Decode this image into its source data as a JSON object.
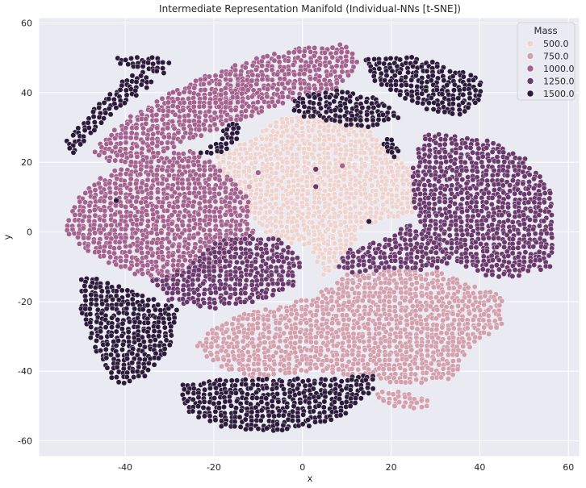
{
  "chart_data": {
    "type": "scatter",
    "title": "Intermediate Representation Manifold (Individual-NNs [t-SNE])",
    "xlabel": "x",
    "ylabel": "y",
    "xlim": [
      -59.5,
      62.5
    ],
    "ylim": [
      -64.5,
      61.5
    ],
    "xticks": [
      -40,
      -20,
      0,
      20,
      40,
      60
    ],
    "yticks": [
      60,
      40,
      20,
      0,
      -20,
      -40,
      -60
    ],
    "grid": true,
    "legend": {
      "title": "Mass",
      "position": "top-right",
      "entries": [
        {
          "label": "500.0",
          "mass": 500,
          "color": "#efd3cf"
        },
        {
          "label": "750.0",
          "mass": 750,
          "color": "#d3a0ae"
        },
        {
          "label": "1000.0",
          "mass": 1000,
          "color": "#a4628f"
        },
        {
          "label": "1250.0",
          "mass": 1250,
          "color": "#6b3a6d"
        },
        {
          "label": "1500.0",
          "mass": 1500,
          "color": "#2c1b3b"
        }
      ]
    },
    "clusters": [
      {
        "mass": 500,
        "polygon": [
          [
            -12,
            26
          ],
          [
            -5,
            33
          ],
          [
            5,
            34
          ],
          [
            13,
            31
          ],
          [
            20,
            24
          ],
          [
            27,
            14
          ],
          [
            26,
            6
          ],
          [
            14,
            2
          ],
          [
            8,
            -10
          ],
          [
            5,
            -13
          ],
          [
            2,
            -5
          ],
          [
            -8,
            -1
          ],
          [
            -13,
            7
          ],
          [
            -19,
            18
          ],
          [
            -20,
            23
          ]
        ]
      },
      {
        "mass": 750,
        "polygon": [
          [
            -22,
            -28
          ],
          [
            -12,
            -23
          ],
          [
            2,
            -19
          ],
          [
            10,
            -12
          ],
          [
            20,
            -11
          ],
          [
            30,
            -11
          ],
          [
            38,
            -15
          ],
          [
            46,
            -19
          ],
          [
            45,
            -27
          ],
          [
            38,
            -33
          ],
          [
            34,
            -42
          ],
          [
            24,
            -44
          ],
          [
            14,
            -42
          ],
          [
            2,
            -40
          ],
          [
            -4,
            -41
          ],
          [
            -12,
            -42
          ],
          [
            -20,
            -38
          ],
          [
            -24,
            -33
          ]
        ]
      },
      {
        "mass": 750,
        "polygon": [
          [
            17,
            -45
          ],
          [
            23,
            -46
          ],
          [
            29,
            -48
          ],
          [
            28,
            -51
          ],
          [
            20,
            -50
          ],
          [
            16,
            -47
          ]
        ]
      },
      {
        "mass": 1000,
        "polygon": [
          [
            -42,
            18
          ],
          [
            -36,
            21
          ],
          [
            -26,
            24
          ],
          [
            -18,
            18
          ],
          [
            -12,
            10
          ],
          [
            -11,
            0
          ],
          [
            -16,
            -8
          ],
          [
            -22,
            -12
          ],
          [
            -34,
            -14
          ],
          [
            -46,
            -8
          ],
          [
            -54,
            0
          ],
          [
            -52,
            8
          ],
          [
            -48,
            14
          ]
        ]
      },
      {
        "mass": 1000,
        "polygon": [
          [
            -48,
            23
          ],
          [
            -40,
            33
          ],
          [
            -30,
            40
          ],
          [
            -20,
            46
          ],
          [
            -10,
            50
          ],
          [
            0,
            53
          ],
          [
            10,
            54
          ],
          [
            13,
            48
          ],
          [
            8,
            41
          ],
          [
            -2,
            38
          ],
          [
            -12,
            33
          ],
          [
            -24,
            27
          ],
          [
            -34,
            21
          ],
          [
            -42,
            19
          ]
        ]
      },
      {
        "mass": 1000,
        "polygon": [
          [
            -22,
            37
          ],
          [
            -14,
            43
          ],
          [
            -8,
            46
          ],
          [
            -12,
            41
          ],
          [
            -18,
            35
          ]
        ]
      },
      {
        "mass": 1250,
        "polygon": [
          [
            28,
            29
          ],
          [
            40,
            27
          ],
          [
            50,
            22
          ],
          [
            56,
            12
          ],
          [
            57,
            -2
          ],
          [
            56,
            -10
          ],
          [
            46,
            -14
          ],
          [
            40,
            -12
          ],
          [
            32,
            -7
          ],
          [
            26,
            3
          ],
          [
            24,
            14
          ],
          [
            26,
            24
          ]
        ]
      },
      {
        "mass": 1250,
        "polygon": [
          [
            10,
            -5
          ],
          [
            18,
            -2
          ],
          [
            24,
            3
          ],
          [
            30,
            -2
          ],
          [
            34,
            -8
          ],
          [
            30,
            -11
          ],
          [
            20,
            -11
          ],
          [
            12,
            -12
          ],
          [
            8,
            -10
          ]
        ]
      },
      {
        "mass": 1250,
        "polygon": [
          [
            -26,
            -10
          ],
          [
            -20,
            -3
          ],
          [
            -12,
            -1
          ],
          [
            -5,
            -2
          ],
          [
            0,
            -8
          ],
          [
            -2,
            -16
          ],
          [
            -10,
            -20
          ],
          [
            -20,
            -22
          ],
          [
            -30,
            -20
          ],
          [
            -34,
            -14
          ]
        ]
      },
      {
        "mass": 1500,
        "polygon": [
          [
            -54,
            25
          ],
          [
            -48,
            34
          ],
          [
            -42,
            42
          ],
          [
            -36,
            47
          ],
          [
            -33,
            43
          ],
          [
            -40,
            37
          ],
          [
            -46,
            30
          ],
          [
            -52,
            22
          ]
        ]
      },
      {
        "mass": 1500,
        "polygon": [
          [
            -42,
            50
          ],
          [
            -36,
            51
          ],
          [
            -30,
            49
          ],
          [
            -31,
            45
          ],
          [
            -37,
            47
          ],
          [
            -42,
            48
          ]
        ]
      },
      {
        "mass": 1500,
        "polygon": [
          [
            14,
            50
          ],
          [
            20,
            51
          ],
          [
            26,
            50
          ],
          [
            32,
            48
          ],
          [
            40,
            44
          ],
          [
            41,
            38
          ],
          [
            36,
            33
          ],
          [
            28,
            35
          ],
          [
            22,
            39
          ],
          [
            16,
            43
          ]
        ]
      },
      {
        "mass": 1500,
        "polygon": [
          [
            -2,
            39
          ],
          [
            8,
            41
          ],
          [
            18,
            38
          ],
          [
            22,
            33
          ],
          [
            16,
            30
          ],
          [
            6,
            31
          ],
          [
            -2,
            34
          ]
        ]
      },
      {
        "mass": 1500,
        "polygon": [
          [
            -50,
            -12
          ],
          [
            -44,
            -14
          ],
          [
            -36,
            -18
          ],
          [
            -28,
            -22
          ],
          [
            -30,
            -34
          ],
          [
            -36,
            -42
          ],
          [
            -42,
            -44
          ],
          [
            -46,
            -36
          ],
          [
            -50,
            -24
          ]
        ]
      },
      {
        "mass": 1500,
        "polygon": [
          [
            -28,
            -44
          ],
          [
            -16,
            -42
          ],
          [
            -4,
            -42
          ],
          [
            8,
            -42
          ],
          [
            16,
            -40
          ],
          [
            16,
            -46
          ],
          [
            8,
            -54
          ],
          [
            -6,
            -58
          ],
          [
            -18,
            -56
          ],
          [
            -26,
            -52
          ]
        ]
      },
      {
        "mass": 1500,
        "polygon": [
          [
            -24,
            22
          ],
          [
            -20,
            25
          ],
          [
            -17,
            31
          ],
          [
            -14,
            32
          ],
          [
            -14,
            27
          ],
          [
            -19,
            22
          ]
        ]
      },
      {
        "mass": 1500,
        "polygon": [
          [
            19,
            28
          ],
          [
            21,
            26
          ],
          [
            23,
            22
          ],
          [
            20,
            21
          ],
          [
            18,
            25
          ]
        ]
      }
    ],
    "outlier_points": [
      {
        "x": -42,
        "y": 9,
        "mass": 1500
      },
      {
        "x": -10,
        "y": 17,
        "mass": 1000
      },
      {
        "x": 3,
        "y": 18,
        "mass": 1250
      },
      {
        "x": 3,
        "y": 13,
        "mass": 1250
      },
      {
        "x": 9,
        "y": 19,
        "mass": 1000
      },
      {
        "x": 15,
        "y": 3,
        "mass": 1500
      },
      {
        "x": -12,
        "y": 13,
        "mass": 750
      }
    ]
  }
}
